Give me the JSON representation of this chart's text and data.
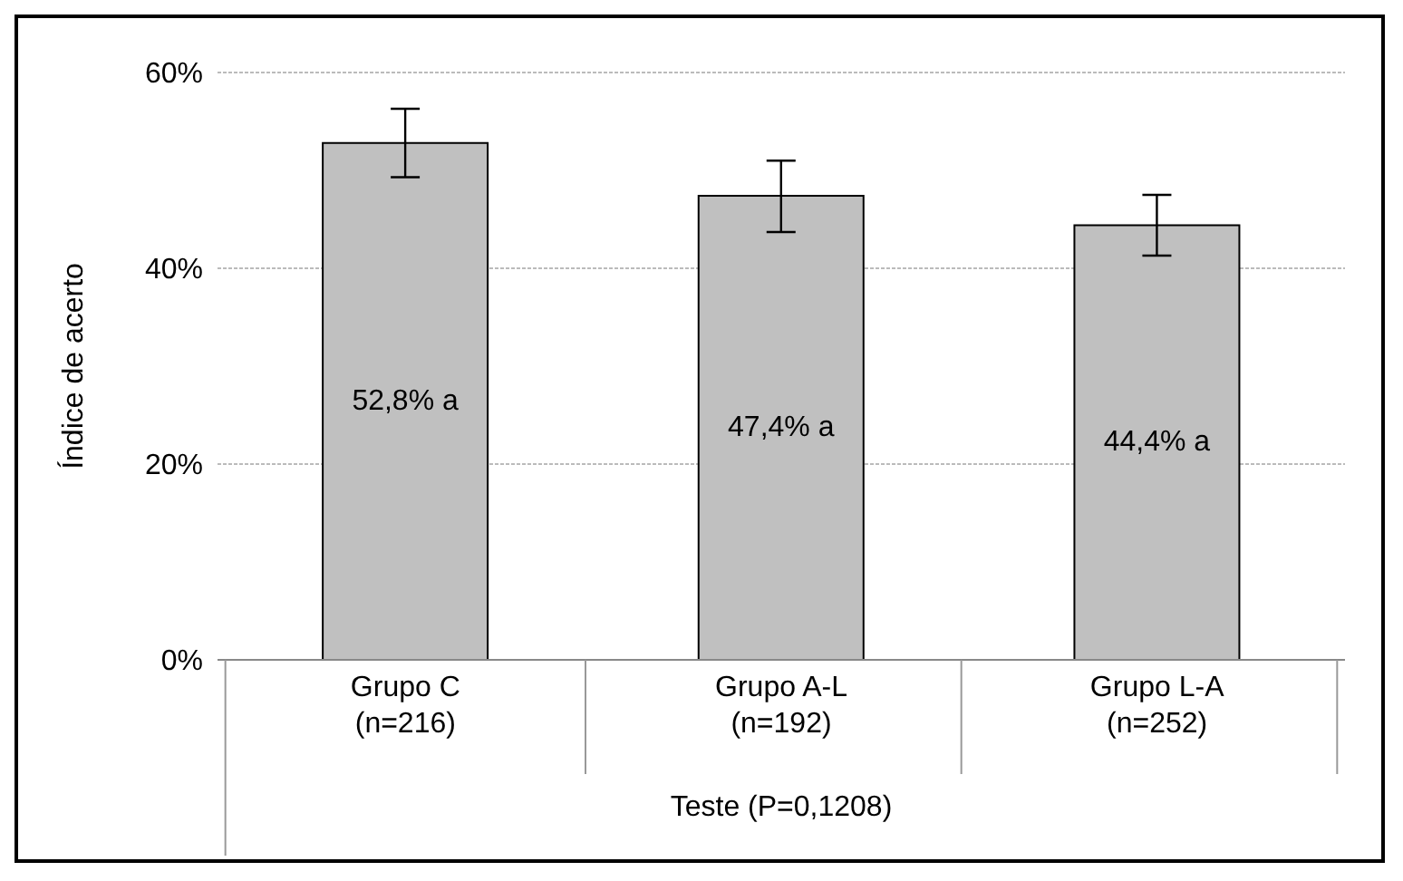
{
  "chart_data": {
    "type": "bar",
    "ylabel": "Índice de acerto",
    "xlabel": "Teste (P=0,1208)",
    "categories": [
      "Grupo C\n(n=216)",
      "Grupo A-L\n(n=192)",
      "Grupo L-A\n(n=252)"
    ],
    "values": [
      52.8,
      47.4,
      44.4
    ],
    "color": "#c0c0c0",
    "errors": [
      [
        49.3,
        56.3
      ],
      [
        43.7,
        51.0
      ],
      [
        41.3,
        47.5
      ]
    ],
    "value_labels": [
      "52,8% a",
      "47,4% a",
      "44,4% a"
    ],
    "ylim": [
      0,
      60
    ],
    "yticks": [
      {
        "value": 0,
        "label": "0%"
      },
      {
        "value": 20,
        "label": "20%"
      },
      {
        "value": 40,
        "label": "40%"
      },
      {
        "value": 60,
        "label": "60%"
      }
    ],
    "grid": "y"
  }
}
